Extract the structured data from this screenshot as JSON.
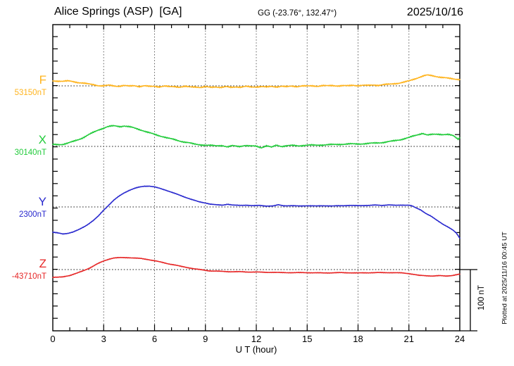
{
  "header": {
    "title": "Alice Springs (ASP)  [GA]",
    "coords": "GG (-23.76°, 132.47°)",
    "date": "2025/10/16"
  },
  "footer": {
    "x_axis_label": "U T (hour)",
    "plotted_at": "Plotted at 2025/11/16 00:45 UT"
  },
  "scale_bar": {
    "label": "100 nT",
    "nT": 100
  },
  "chart_data": {
    "type": "line",
    "title": "Alice Springs (ASP) [GA] magnetogram, 2025/10/16",
    "xlabel": "U T (hour)",
    "x_range": [
      0,
      24
    ],
    "x_ticks": [
      0,
      3,
      6,
      9,
      12,
      15,
      18,
      21,
      24
    ],
    "x_minor_tick_step_hours": 1,
    "y_minor_tick_nT": 20,
    "scale_bar_nT": 100,
    "grid": "dotted vertical lines every 3 h; dotted horizontal baseline for each trace; frame box with inward ticks",
    "legend_position": "left margin, one colored label per trace",
    "points_units": "hour UT, offset in nT from trace baseline",
    "series": [
      {
        "name": "F",
        "baseline_label": "53150nT",
        "baseline_nT": 53150,
        "color": "#FFB41E",
        "points": [
          [
            0,
            8
          ],
          [
            0.3,
            8
          ],
          [
            0.6,
            7.5
          ],
          [
            0.9,
            8
          ],
          [
            1.2,
            7
          ],
          [
            1.5,
            5.5
          ],
          [
            1.8,
            4.5
          ],
          [
            2.1,
            3
          ],
          [
            2.4,
            2
          ],
          [
            2.7,
            0.5
          ],
          [
            3,
            0
          ],
          [
            3.3,
            1
          ],
          [
            3.6,
            0
          ],
          [
            3.9,
            -0.5
          ],
          [
            4.2,
            0.5
          ],
          [
            4.5,
            -0.5
          ],
          [
            4.8,
            0.5
          ],
          [
            5.1,
            -1
          ],
          [
            5.4,
            0
          ],
          [
            5.7,
            -1
          ],
          [
            6,
            -0.5
          ],
          [
            6.3,
            -1.5
          ],
          [
            6.6,
            -0.5
          ],
          [
            6.9,
            -1.5
          ],
          [
            7.2,
            -1
          ],
          [
            7.5,
            -2
          ],
          [
            7.8,
            -1
          ],
          [
            8.1,
            -2
          ],
          [
            8.4,
            -1.5
          ],
          [
            8.7,
            -2.5
          ],
          [
            9,
            -1.5
          ],
          [
            9.3,
            -2.5
          ],
          [
            9.6,
            -1.5
          ],
          [
            9.9,
            -2.5
          ],
          [
            10.2,
            -1.5
          ],
          [
            10.5,
            -2.5
          ],
          [
            10.8,
            -1.5
          ],
          [
            11.1,
            -2
          ],
          [
            11.4,
            -1
          ],
          [
            11.7,
            -2
          ],
          [
            12,
            -1.5
          ],
          [
            12.3,
            -1
          ],
          [
            12.6,
            -2
          ],
          [
            12.9,
            -1
          ],
          [
            13.2,
            -1.5
          ],
          [
            13.5,
            -0.5
          ],
          [
            13.8,
            -1.5
          ],
          [
            14.1,
            -0.5
          ],
          [
            14.4,
            -1
          ],
          [
            14.7,
            0
          ],
          [
            15,
            -0.5
          ],
          [
            15.3,
            0
          ],
          [
            15.6,
            -0.5
          ],
          [
            15.9,
            0.5
          ],
          [
            16.2,
            0
          ],
          [
            16.5,
            0.5
          ],
          [
            16.8,
            0
          ],
          [
            17.1,
            0.5
          ],
          [
            17.4,
            0
          ],
          [
            17.7,
            1
          ],
          [
            18,
            0.5
          ],
          [
            18.3,
            1
          ],
          [
            18.6,
            0.5
          ],
          [
            18.9,
            1.5
          ],
          [
            19.2,
            1
          ],
          [
            19.5,
            2
          ],
          [
            19.8,
            2.5
          ],
          [
            20.1,
            3.5
          ],
          [
            20.4,
            4.5
          ],
          [
            20.7,
            6
          ],
          [
            21,
            8
          ],
          [
            21.3,
            11
          ],
          [
            21.6,
            14
          ],
          [
            21.9,
            16.5
          ],
          [
            22.1,
            17.5
          ],
          [
            22.4,
            16.5
          ],
          [
            22.7,
            15
          ],
          [
            23,
            13.5
          ],
          [
            23.3,
            12.5
          ],
          [
            23.6,
            11.5
          ],
          [
            24,
            10.5
          ]
        ]
      },
      {
        "name": "X",
        "baseline_label": "30140nT",
        "baseline_nT": 30140,
        "color": "#22CB3B",
        "points": [
          [
            0,
            3
          ],
          [
            0.3,
            3
          ],
          [
            0.6,
            3.5
          ],
          [
            0.9,
            5.5
          ],
          [
            1.2,
            8
          ],
          [
            1.5,
            11
          ],
          [
            1.8,
            14.5
          ],
          [
            2.1,
            19
          ],
          [
            2.4,
            23
          ],
          [
            2.7,
            27
          ],
          [
            3,
            30
          ],
          [
            3.2,
            32
          ],
          [
            3.4,
            33
          ],
          [
            3.6,
            33.5
          ],
          [
            3.8,
            33
          ],
          [
            4,
            32.5
          ],
          [
            4.2,
            33.5
          ],
          [
            4.4,
            32.5
          ],
          [
            4.6,
            31.5
          ],
          [
            4.8,
            30
          ],
          [
            5,
            28.5
          ],
          [
            5.3,
            26
          ],
          [
            5.6,
            23
          ],
          [
            5.9,
            20.5
          ],
          [
            6.2,
            18
          ],
          [
            6.5,
            16
          ],
          [
            6.8,
            13.5
          ],
          [
            7.1,
            11.5
          ],
          [
            7.4,
            9.5
          ],
          [
            7.7,
            7.5
          ],
          [
            8,
            6
          ],
          [
            8.3,
            4
          ],
          [
            8.6,
            3
          ],
          [
            9,
            2
          ],
          [
            9.3,
            1.5
          ],
          [
            9.6,
            1
          ],
          [
            10,
            1.5
          ],
          [
            10.3,
            -1
          ],
          [
            10.6,
            1
          ],
          [
            11,
            0
          ],
          [
            11.3,
            1.5
          ],
          [
            11.6,
            0.5
          ],
          [
            12,
            0.5
          ],
          [
            12.3,
            -2
          ],
          [
            12.6,
            1
          ],
          [
            12.9,
            -1.5
          ],
          [
            13.2,
            2
          ],
          [
            13.5,
            0
          ],
          [
            13.8,
            1
          ],
          [
            14.1,
            1.5
          ],
          [
            14.5,
            1
          ],
          [
            15,
            2
          ],
          [
            15.5,
            2
          ],
          [
            16,
            2.5
          ],
          [
            16.5,
            3
          ],
          [
            17,
            3.5
          ],
          [
            17.5,
            4
          ],
          [
            18,
            4
          ],
          [
            18.5,
            4.5
          ],
          [
            19,
            5.5
          ],
          [
            19.5,
            6.5
          ],
          [
            20,
            8.5
          ],
          [
            20.5,
            11
          ],
          [
            21,
            14.5
          ],
          [
            21.4,
            18
          ],
          [
            21.8,
            21.5
          ],
          [
            22.1,
            18.5
          ],
          [
            22.4,
            19.5
          ],
          [
            22.7,
            20
          ],
          [
            23,
            19.5
          ],
          [
            23.3,
            19.5
          ],
          [
            23.6,
            17.5
          ],
          [
            23.9,
            12
          ],
          [
            24,
            14
          ]
        ]
      },
      {
        "name": "Y",
        "baseline_label": "2300nT",
        "baseline_nT": 2300,
        "color": "#2828CE",
        "points": [
          [
            0,
            -41.5
          ],
          [
            0.3,
            -42.5
          ],
          [
            0.6,
            -44
          ],
          [
            0.9,
            -43
          ],
          [
            1.2,
            -41
          ],
          [
            1.5,
            -37.5
          ],
          [
            1.8,
            -33
          ],
          [
            2.1,
            -28
          ],
          [
            2.4,
            -22
          ],
          [
            2.7,
            -14.5
          ],
          [
            3,
            -5
          ],
          [
            3.3,
            3
          ],
          [
            3.6,
            11
          ],
          [
            3.9,
            17.5
          ],
          [
            4.2,
            23
          ],
          [
            4.5,
            27
          ],
          [
            4.8,
            30
          ],
          [
            5.1,
            32.5
          ],
          [
            5.4,
            34
          ],
          [
            5.7,
            34
          ],
          [
            6,
            32.5
          ],
          [
            6.3,
            30.5
          ],
          [
            6.6,
            28
          ],
          [
            7,
            24
          ],
          [
            7.4,
            20
          ],
          [
            7.8,
            16
          ],
          [
            8.2,
            12
          ],
          [
            8.6,
            8.5
          ],
          [
            9,
            6.5
          ],
          [
            9.3,
            4.5
          ],
          [
            9.6,
            3.5
          ],
          [
            10,
            3
          ],
          [
            10.3,
            4.5
          ],
          [
            10.6,
            3
          ],
          [
            11,
            2.5
          ],
          [
            11.4,
            3
          ],
          [
            11.8,
            2
          ],
          [
            12.2,
            2.5
          ],
          [
            12.6,
            1.5
          ],
          [
            13,
            1.5
          ],
          [
            13.3,
            3.5
          ],
          [
            13.6,
            2
          ],
          [
            14,
            2
          ],
          [
            14.5,
            1.5
          ],
          [
            15,
            2
          ],
          [
            15.5,
            1.5
          ],
          [
            16,
            2
          ],
          [
            16.5,
            1.5
          ],
          [
            17,
            2
          ],
          [
            17.5,
            2.5
          ],
          [
            18,
            2
          ],
          [
            18.5,
            2.5
          ],
          [
            19,
            3
          ],
          [
            19.4,
            2.5
          ],
          [
            19.8,
            3.5
          ],
          [
            20.2,
            2.5
          ],
          [
            20.6,
            3
          ],
          [
            21,
            3
          ],
          [
            21.2,
            1.5
          ],
          [
            21.4,
            -1.5
          ],
          [
            21.7,
            -5
          ],
          [
            22,
            -10.5
          ],
          [
            22.3,
            -15
          ],
          [
            22.6,
            -21
          ],
          [
            23,
            -28
          ],
          [
            23.3,
            -32.5
          ],
          [
            23.6,
            -38
          ],
          [
            23.8,
            -43
          ],
          [
            23.95,
            -49
          ],
          [
            24,
            -51
          ]
        ]
      },
      {
        "name": "Z",
        "baseline_label": "-43710nT",
        "baseline_nT": -43710,
        "color": "#E62525",
        "points": [
          [
            0,
            -12.5
          ],
          [
            0.3,
            -12.5
          ],
          [
            0.6,
            -12
          ],
          [
            1,
            -9.5
          ],
          [
            1.4,
            -6
          ],
          [
            1.8,
            -2
          ],
          [
            2.2,
            3
          ],
          [
            2.6,
            9
          ],
          [
            3,
            14
          ],
          [
            3.3,
            17
          ],
          [
            3.6,
            19
          ],
          [
            4,
            19.5
          ],
          [
            4.4,
            19.5
          ],
          [
            4.8,
            19
          ],
          [
            5.2,
            18
          ],
          [
            5.6,
            16.5
          ],
          [
            6,
            14.5
          ],
          [
            6.4,
            12
          ],
          [
            6.8,
            9.5
          ],
          [
            7.2,
            7.5
          ],
          [
            7.6,
            5
          ],
          [
            8,
            3
          ],
          [
            8.4,
            1
          ],
          [
            8.8,
            -0.5
          ],
          [
            9.2,
            -2
          ],
          [
            9.6,
            -2.5
          ],
          [
            10,
            -3
          ],
          [
            10.5,
            -3.5
          ],
          [
            11,
            -3.5
          ],
          [
            11.5,
            -4
          ],
          [
            12,
            -4
          ],
          [
            12.5,
            -4.5
          ],
          [
            13,
            -4.5
          ],
          [
            13.5,
            -5
          ],
          [
            14,
            -5
          ],
          [
            15,
            -5
          ],
          [
            16,
            -5.5
          ],
          [
            17,
            -5
          ],
          [
            18,
            -5.5
          ],
          [
            19,
            -5
          ],
          [
            20,
            -5
          ],
          [
            20.6,
            -5.5
          ],
          [
            21,
            -6.5
          ],
          [
            21.3,
            -8
          ],
          [
            21.6,
            -9.5
          ],
          [
            22,
            -10
          ],
          [
            22.4,
            -10.5
          ],
          [
            22.8,
            -10
          ],
          [
            23.2,
            -10.5
          ],
          [
            23.6,
            -9.5
          ],
          [
            24,
            -7.5
          ]
        ]
      }
    ]
  }
}
